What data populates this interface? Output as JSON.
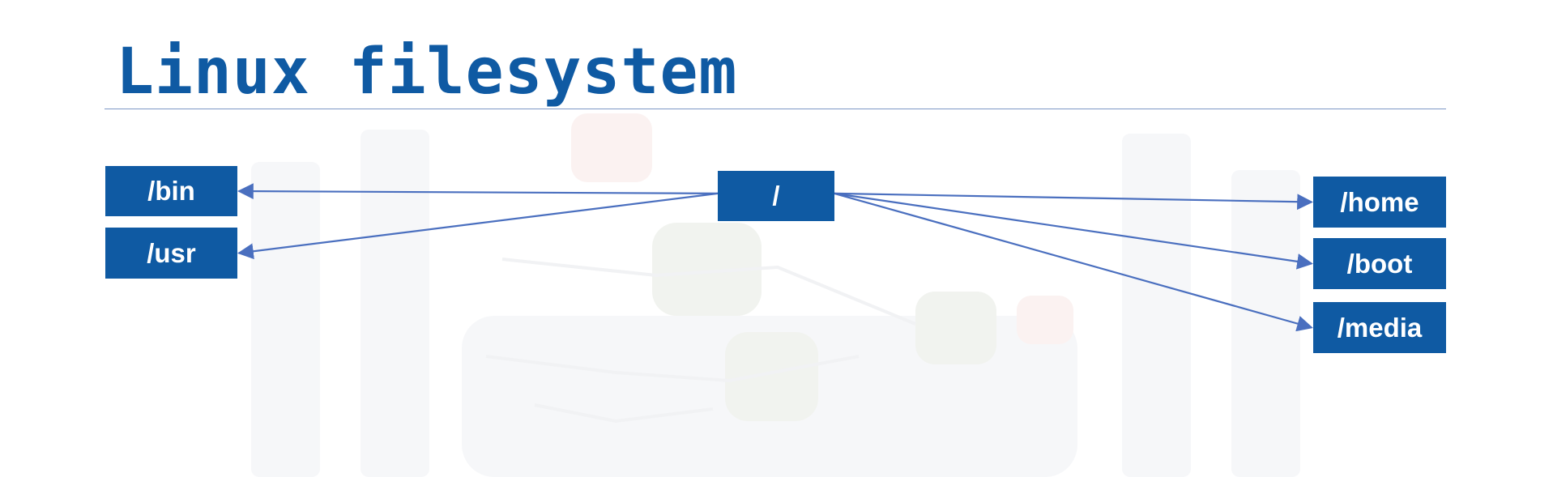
{
  "title": "Linux filesystem",
  "colors": {
    "accent": "#0f5aa3",
    "arrow": "#4a6fbf",
    "rule": "#7d98c6"
  },
  "nodes": {
    "root": {
      "label": "/"
    },
    "bin": {
      "label": "/bin"
    },
    "usr": {
      "label": "/usr"
    },
    "home": {
      "label": "/home"
    },
    "boot": {
      "label": "/boot"
    },
    "media": {
      "label": "/media"
    }
  },
  "edges": [
    {
      "from": "root",
      "to": "bin"
    },
    {
      "from": "root",
      "to": "usr"
    },
    {
      "from": "root",
      "to": "home"
    },
    {
      "from": "root",
      "to": "boot"
    },
    {
      "from": "root",
      "to": "media"
    }
  ]
}
